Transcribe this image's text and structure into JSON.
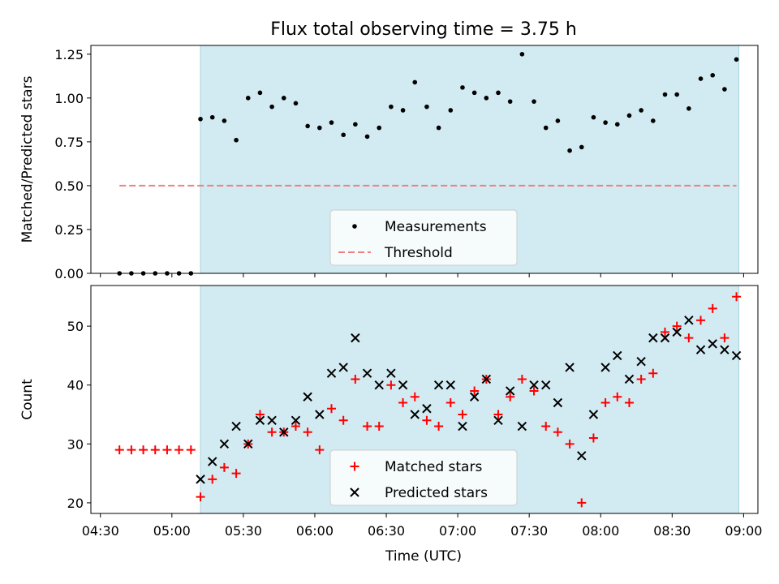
{
  "figure": {
    "title": "Flux total observing time = 3.75 h",
    "xlabel": "Time (UTC)",
    "x_ticks": [
      "04:30",
      "05:00",
      "05:30",
      "06:00",
      "06:30",
      "07:00",
      "07:30",
      "08:00",
      "08:30",
      "09:00"
    ]
  },
  "colors": {
    "shade": "#add8e6",
    "measurement": "#000000",
    "threshold": "#f08080",
    "matched": "#ff0000",
    "predicted": "#000000"
  },
  "chart_data": [
    {
      "type": "scatter",
      "title": "Flux total observing time = 3.75 h",
      "xlabel": "",
      "ylabel": "Matched/Predicted stars",
      "x_unit": "time (UTC)",
      "xlim": [
        "04:26",
        "09:06"
      ],
      "ylim": [
        0.0,
        1.3
      ],
      "y_ticks": [
        0.0,
        0.25,
        0.5,
        0.75,
        1.0,
        1.25
      ],
      "y_tick_labels": [
        "0.00",
        "0.25",
        "0.50",
        "0.75",
        "1.00",
        "1.25"
      ],
      "shaded_span": [
        "05:12",
        "08:58"
      ],
      "legend_position": "lower-center",
      "series": [
        {
          "name": "Measurements",
          "style": "dot",
          "x": [
            "04:38",
            "04:43",
            "04:48",
            "04:53",
            "04:58",
            "05:03",
            "05:08",
            "05:12",
            "05:17",
            "05:22",
            "05:27",
            "05:32",
            "05:37",
            "05:42",
            "05:47",
            "05:52",
            "05:57",
            "06:02",
            "06:07",
            "06:12",
            "06:17",
            "06:22",
            "06:27",
            "06:32",
            "06:37",
            "06:42",
            "06:47",
            "06:52",
            "06:57",
            "07:02",
            "07:07",
            "07:12",
            "07:17",
            "07:22",
            "07:27",
            "07:32",
            "07:37",
            "07:42",
            "07:47",
            "07:52",
            "07:57",
            "08:02",
            "08:07",
            "08:12",
            "08:17",
            "08:22",
            "08:27",
            "08:32",
            "08:37",
            "08:42",
            "08:47",
            "08:52",
            "08:57"
          ],
          "y": [
            0,
            0,
            0,
            0,
            0,
            0,
            0,
            0.88,
            0.89,
            0.87,
            0.76,
            1.0,
            1.03,
            0.95,
            1.0,
            0.97,
            0.84,
            0.83,
            0.86,
            0.79,
            0.85,
            0.78,
            0.83,
            0.95,
            0.93,
            1.09,
            0.95,
            0.83,
            0.93,
            1.06,
            1.03,
            1.0,
            1.03,
            0.98,
            1.25,
            0.98,
            0.83,
            0.87,
            0.7,
            0.72,
            0.89,
            0.86,
            0.85,
            0.9,
            0.93,
            0.87,
            1.02,
            1.02,
            0.94,
            1.11,
            1.13,
            1.05,
            1.22
          ]
        },
        {
          "name": "Threshold",
          "style": "dashed-line",
          "x": [
            "04:38",
            "08:57"
          ],
          "y": [
            0.5,
            0.5
          ]
        }
      ]
    },
    {
      "type": "scatter",
      "title": "",
      "xlabel": "Time (UTC)",
      "ylabel": "Count",
      "x_unit": "time (UTC)",
      "xlim": [
        "04:26",
        "09:06"
      ],
      "ylim": [
        18.2,
        56.9
      ],
      "y_ticks": [
        20,
        30,
        40,
        50
      ],
      "y_tick_labels": [
        "20",
        "30",
        "40",
        "50"
      ],
      "shaded_span": [
        "05:12",
        "08:58"
      ],
      "legend_position": "lower-center",
      "series": [
        {
          "name": "Matched stars",
          "style": "plus",
          "x": [
            "04:38",
            "04:43",
            "04:48",
            "04:53",
            "04:58",
            "05:03",
            "05:08",
            "05:12",
            "05:17",
            "05:22",
            "05:27",
            "05:32",
            "05:37",
            "05:42",
            "05:47",
            "05:52",
            "05:57",
            "06:02",
            "06:07",
            "06:12",
            "06:17",
            "06:22",
            "06:27",
            "06:32",
            "06:37",
            "06:42",
            "06:47",
            "06:52",
            "06:57",
            "07:02",
            "07:07",
            "07:12",
            "07:17",
            "07:22",
            "07:27",
            "07:32",
            "07:37",
            "07:42",
            "07:47",
            "07:52",
            "07:57",
            "08:02",
            "08:07",
            "08:12",
            "08:17",
            "08:22",
            "08:27",
            "08:32",
            "08:37",
            "08:42",
            "08:47",
            "08:52",
            "08:57"
          ],
          "y": [
            29,
            29,
            29,
            29,
            29,
            29,
            29,
            21,
            24,
            26,
            25,
            30,
            35,
            32,
            32,
            33,
            32,
            29,
            36,
            34,
            41,
            33,
            33,
            40,
            37,
            38,
            34,
            33,
            37,
            35,
            39,
            41,
            35,
            38,
            41,
            39,
            33,
            32,
            30,
            20,
            31,
            37,
            38,
            37,
            41,
            42,
            49,
            50,
            48,
            51,
            53,
            48,
            55
          ]
        },
        {
          "name": "Predicted stars",
          "style": "x",
          "x": [
            "05:12",
            "05:17",
            "05:22",
            "05:27",
            "05:32",
            "05:37",
            "05:42",
            "05:47",
            "05:52",
            "05:57",
            "06:02",
            "06:07",
            "06:12",
            "06:17",
            "06:22",
            "06:27",
            "06:32",
            "06:37",
            "06:42",
            "06:47",
            "06:52",
            "06:57",
            "07:02",
            "07:07",
            "07:12",
            "07:17",
            "07:22",
            "07:27",
            "07:32",
            "07:37",
            "07:42",
            "07:47",
            "07:52",
            "07:57",
            "08:02",
            "08:07",
            "08:12",
            "08:17",
            "08:22",
            "08:27",
            "08:32",
            "08:37",
            "08:42",
            "08:47",
            "08:52",
            "08:57"
          ],
          "y": [
            24,
            27,
            30,
            33,
            30,
            34,
            34,
            32,
            34,
            38,
            35,
            42,
            43,
            48,
            42,
            40,
            42,
            40,
            35,
            36,
            40,
            40,
            33,
            38,
            41,
            34,
            39,
            33,
            40,
            40,
            37,
            43,
            28,
            35,
            43,
            45,
            41,
            44,
            48,
            48,
            49,
            51,
            46,
            47,
            46,
            45
          ]
        }
      ]
    }
  ]
}
